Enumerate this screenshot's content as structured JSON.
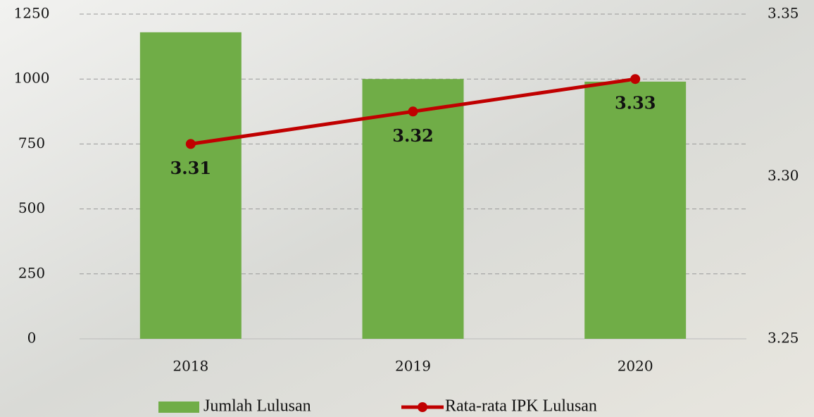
{
  "chart_data": {
    "type": "bar-line",
    "categories": [
      "2018",
      "2019",
      "2020"
    ],
    "series": [
      {
        "name": "Jumlah Lulusan",
        "type": "bar",
        "color": "#70ad47",
        "values": [
          1180,
          1000,
          990
        ]
      },
      {
        "name": "Rata-rata IPK Lulusan",
        "type": "line",
        "axis": "y2",
        "color": "#c00000",
        "values": [
          3.31,
          3.32,
          3.33
        ]
      }
    ],
    "ylim": [
      0,
      1250
    ],
    "yticks": [
      0,
      250,
      500,
      750,
      1000,
      1250
    ],
    "y2lim": [
      3.25,
      3.35
    ],
    "y2ticks": [
      3.25,
      {
        "value": 3.3,
        "label": "3.30"
      },
      3.35
    ],
    "grid": true,
    "legend": "bottom"
  }
}
